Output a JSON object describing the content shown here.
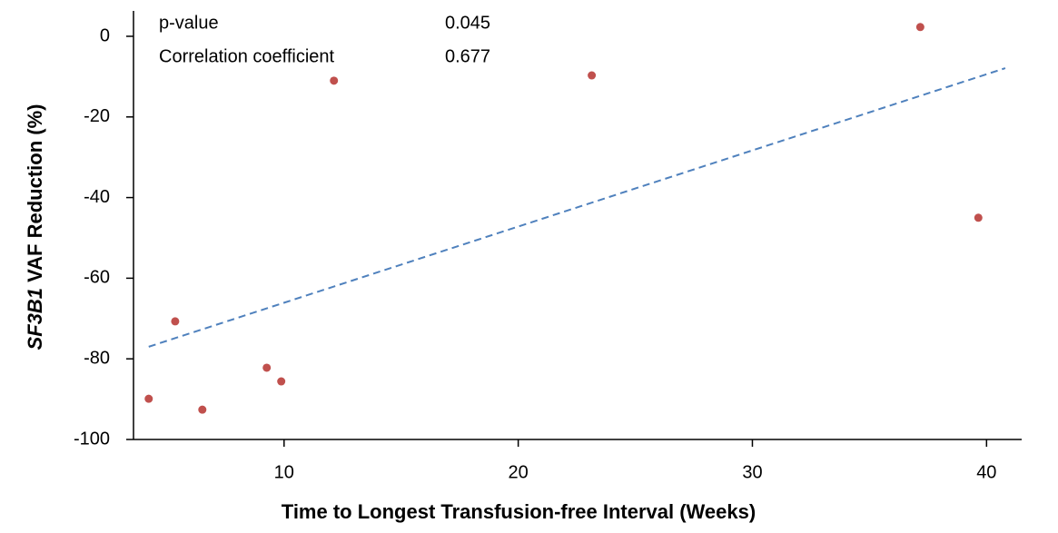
{
  "chart_data": {
    "type": "scatter",
    "x_label": "Time to Longest Transfusion-free Interval (Weeks)",
    "y_label_italic": "SF3B1",
    "y_label": "VAF Reduction (%)",
    "annotations": [
      [
        "p-value",
        "0.045"
      ],
      [
        "Correlation coefficient",
        "0.677"
      ]
    ],
    "x": [
      4.22,
      5.35,
      6.51,
      9.26,
      9.88,
      12.13,
      23.14,
      37.17,
      39.65
    ],
    "values": [
      -89.9,
      -70.7,
      -92.6,
      -82.2,
      -85.6,
      -11.0,
      -9.7,
      2.3,
      -45.0
    ],
    "color": "#c0504d",
    "trendline": {
      "x": [
        4.22,
        40.8
      ],
      "y": [
        -77.0,
        -7.9
      ],
      "color": "#4f81bd",
      "dashed": true
    },
    "xlim": [
      3.57,
      41.5
    ],
    "ylim": [
      -100,
      6.3
    ],
    "xticks": [
      10,
      20,
      30,
      40
    ],
    "yticks": [
      0,
      -20,
      -40,
      -60,
      -80,
      -100
    ]
  }
}
